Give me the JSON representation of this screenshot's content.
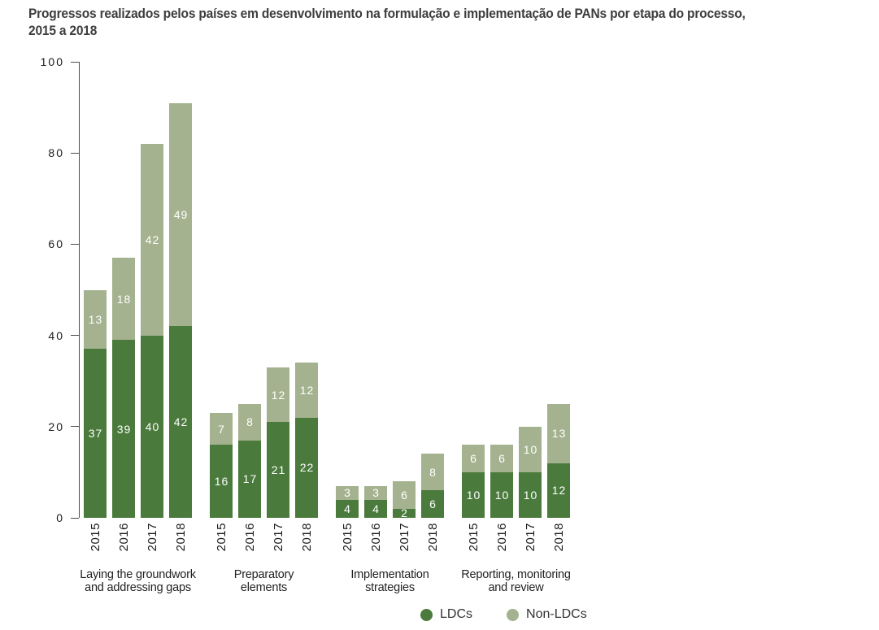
{
  "title": {
    "line1": "Progressos realizados pelos países em desenvolvimento na formulação e implementação de PANs por etapa do processo,",
    "line2": "2015 a 2018"
  },
  "chart_data": {
    "type": "bar",
    "stacked": true,
    "title": "Progressos realizados pelos países em desenvolvimento na formulação e implementação de PANs por etapa do processo, 2015 a 2018",
    "ylim": [
      0,
      100
    ],
    "yticks": [
      100,
      80,
      60,
      40,
      20,
      0
    ],
    "grid": false,
    "legend_position": "bottom-right",
    "series": [
      {
        "name": "LDCs",
        "color": "#4a7a3c"
      },
      {
        "name": "Non-LDCs",
        "color": "#a4b28f"
      }
    ],
    "years": [
      "2015",
      "2016",
      "2017",
      "2018"
    ],
    "groups": [
      {
        "label_lines": [
          "Laying the groundwork",
          "and addressing gaps"
        ],
        "ldcs": [
          37,
          39,
          40,
          42
        ],
        "non_ldcs": [
          13,
          18,
          42,
          49
        ]
      },
      {
        "label_lines": [
          "Preparatory",
          "elements"
        ],
        "ldcs": [
          16,
          17,
          21,
          22
        ],
        "non_ldcs": [
          7,
          8,
          12,
          12
        ]
      },
      {
        "label_lines": [
          "Implementation",
          "strategies"
        ],
        "ldcs": [
          4,
          4,
          2,
          6
        ],
        "non_ldcs": [
          3,
          3,
          6,
          8
        ]
      },
      {
        "label_lines": [
          "Reporting, monitoring",
          "and review"
        ],
        "ldcs": [
          10,
          10,
          10,
          12
        ],
        "non_ldcs": [
          6,
          6,
          10,
          13
        ]
      }
    ]
  }
}
